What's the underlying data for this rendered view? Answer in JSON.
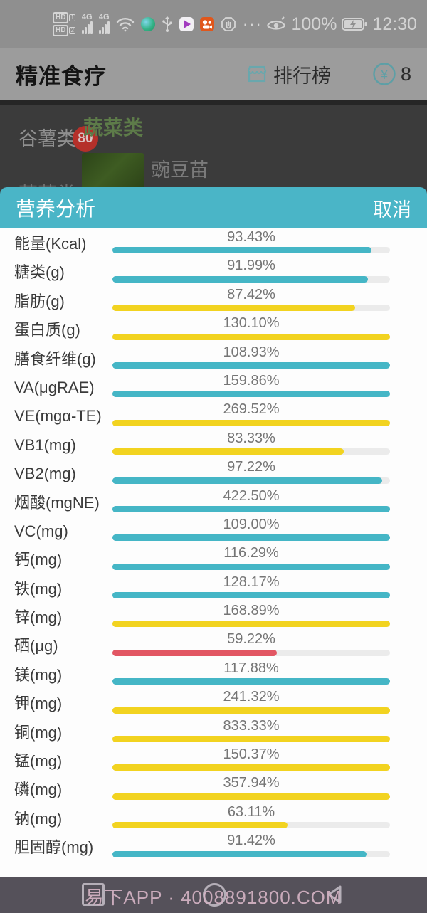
{
  "status_bar": {
    "time": "12:30",
    "battery_percent": "100%",
    "more_dots": "···",
    "icons": [
      "hd1-icon",
      "hd2-icon",
      "signal-4g-1-icon",
      "signal-4g-2-icon",
      "wifi-icon",
      "green-app-icon",
      "usb-icon",
      "video-player-app-icon",
      "kuaishou-app-icon",
      "hand-block-icon",
      "more-icon",
      "eye-protection-icon",
      "battery-charging-icon"
    ]
  },
  "header": {
    "title": "精准食疗",
    "ranking_label": "排行榜",
    "coin_symbol": "¥",
    "coin_count": "8"
  },
  "background": {
    "sidebar_item_1": "谷薯类",
    "sidebar_item_1_badge": "80",
    "sidebar_item_2": "蔬菜类",
    "category_title": "蔬菜类",
    "food_name": "豌豆苗"
  },
  "panel": {
    "title": "营养分析",
    "cancel_label": "取消",
    "bar_colors": {
      "teal": "#45b6c6",
      "yellow": "#f2d320",
      "red": "#e25663"
    },
    "track_color": "#ebebeb"
  },
  "nutrients": [
    {
      "label": "能量(Kcal)",
      "percent_label": "93.43%",
      "value": 93.43,
      "color": "teal"
    },
    {
      "label": "糖类(g)",
      "percent_label": "91.99%",
      "value": 91.99,
      "color": "teal"
    },
    {
      "label": "脂肪(g)",
      "percent_label": "87.42%",
      "value": 87.42,
      "color": "yellow"
    },
    {
      "label": "蛋白质(g)",
      "percent_label": "130.10%",
      "value": 130.1,
      "color": "yellow"
    },
    {
      "label": "膳食纤维(g)",
      "percent_label": "108.93%",
      "value": 108.93,
      "color": "teal"
    },
    {
      "label": "VA(μgRAE)",
      "percent_label": "159.86%",
      "value": 159.86,
      "color": "teal"
    },
    {
      "label": "VE(mgα-TE)",
      "percent_label": "269.52%",
      "value": 269.52,
      "color": "yellow"
    },
    {
      "label": "VB1(mg)",
      "percent_label": "83.33%",
      "value": 83.33,
      "color": "yellow"
    },
    {
      "label": "VB2(mg)",
      "percent_label": "97.22%",
      "value": 97.22,
      "color": "teal"
    },
    {
      "label": "烟酸(mgNE)",
      "percent_label": "422.50%",
      "value": 422.5,
      "color": "teal"
    },
    {
      "label": "VC(mg)",
      "percent_label": "109.00%",
      "value": 109.0,
      "color": "teal"
    },
    {
      "label": "钙(mg)",
      "percent_label": "116.29%",
      "value": 116.29,
      "color": "teal"
    },
    {
      "label": "铁(mg)",
      "percent_label": "128.17%",
      "value": 128.17,
      "color": "teal"
    },
    {
      "label": "锌(mg)",
      "percent_label": "168.89%",
      "value": 168.89,
      "color": "yellow"
    },
    {
      "label": "硒(μg)",
      "percent_label": "59.22%",
      "value": 59.22,
      "color": "red"
    },
    {
      "label": "镁(mg)",
      "percent_label": "117.88%",
      "value": 117.88,
      "color": "teal"
    },
    {
      "label": "钾(mg)",
      "percent_label": "241.32%",
      "value": 241.32,
      "color": "yellow"
    },
    {
      "label": "铜(mg)",
      "percent_label": "833.33%",
      "value": 833.33,
      "color": "yellow"
    },
    {
      "label": "锰(mg)",
      "percent_label": "150.37%",
      "value": 150.37,
      "color": "yellow"
    },
    {
      "label": "磷(mg)",
      "percent_label": "357.94%",
      "value": 357.94,
      "color": "yellow"
    },
    {
      "label": "钠(mg)",
      "percent_label": "63.11%",
      "value": 63.11,
      "color": "yellow"
    },
    {
      "label": "胆固醇(mg)",
      "percent_label": "91.42%",
      "value": 91.42,
      "color": "teal"
    }
  ],
  "nav_bar": {
    "watermark": "易下APP · 4008891800.COM"
  }
}
